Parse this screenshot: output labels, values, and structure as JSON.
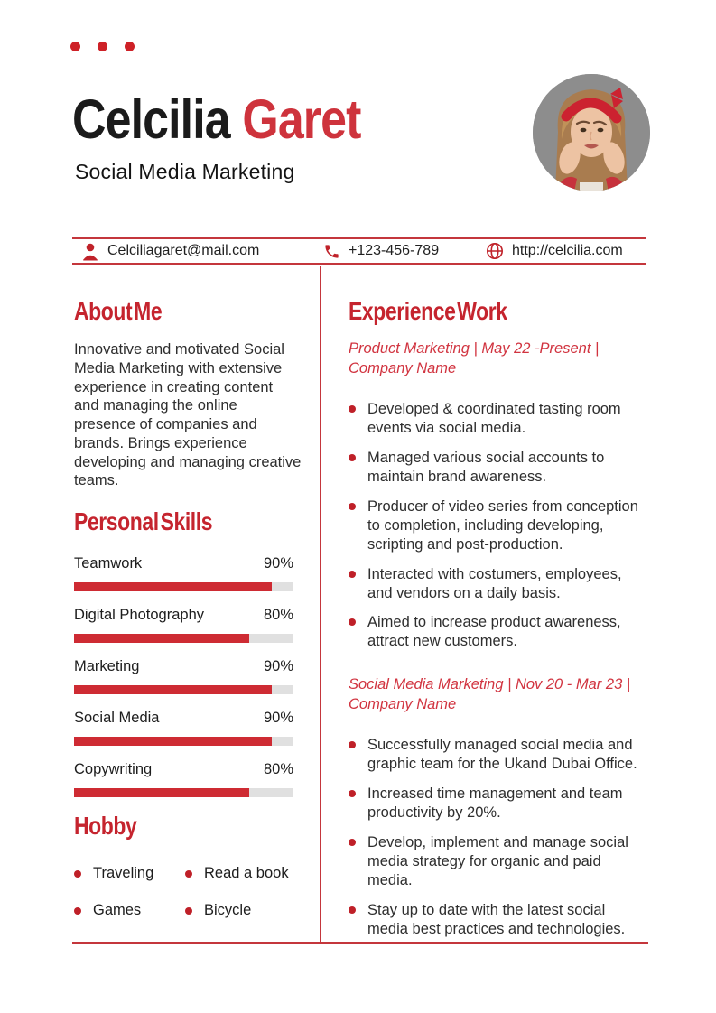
{
  "colors": {
    "accent_red": "#c5242e",
    "name_red": "#ce333c",
    "line_red": "#c4363c",
    "bar_red": "#ce2b33",
    "bullet_red": "#bf2028",
    "bar_track_gray": "#e0e0e0",
    "text_dark": "#2e2e2e",
    "title_black": "#1b1b1b",
    "avatar_bg_gray": "#8d8d8d"
  },
  "header": {
    "first_name": "Celcilia ",
    "last_name": "Garet",
    "subtitle": "Social Media Marketing"
  },
  "contact": {
    "email": "Celciliagaret@mail.com",
    "phone": "+123-456-789",
    "website": "http://celcilia.com"
  },
  "about": {
    "title": "About Me",
    "text": "Innovative and motivated Social Media Marketing with extensive experience in creating content and managing the online presence of companies and brands. Brings experience developing and managing creative teams."
  },
  "skills": {
    "title": "Personal Skills",
    "items": [
      {
        "label": "Teamwork",
        "percent": "90%",
        "value": 90
      },
      {
        "label": "Digital Photography",
        "percent": "80%",
        "value": 80
      },
      {
        "label": "Marketing",
        "percent": "90%",
        "value": 90
      },
      {
        "label": "Social Media",
        "percent": "90%",
        "value": 90
      },
      {
        "label": "Copywriting",
        "percent": "80%",
        "value": 80
      }
    ]
  },
  "hobby": {
    "title": "Hobby",
    "items": [
      {
        "label": "Traveling"
      },
      {
        "label": "Read a book"
      },
      {
        "label": "Games"
      },
      {
        "label": "Bicycle"
      }
    ]
  },
  "experience": {
    "title": "Experience Work",
    "jobs": [
      {
        "heading_line1": "Product Marketing | May 22 -Present |",
        "heading_line2": "Company Name",
        "bullets": [
          {
            "text": "Developed & coordinated tasting room events via social media."
          },
          {
            "text": "Managed various social accounts to maintain brand awareness."
          },
          {
            "text": "Producer of video series from conception to completion, including developing, scripting and post-production."
          },
          {
            "text": "Interacted with costumers, employees, and vendors on a daily basis."
          },
          {
            "text": "Aimed to increase product awareness, attract new customers."
          }
        ]
      },
      {
        "heading_line1": "Social Media Marketing | Nov 20 - Mar 23 |",
        "heading_line2": "Company Name",
        "bullets": [
          {
            "text": "Successfully managed social media and graphic team for the Ukand Dubai Office."
          },
          {
            "text": "Increased time management and team productivity by 20%."
          },
          {
            "text": "Develop, implement and manage social media strategy for organic and paid media."
          },
          {
            "text": "Stay up to date with the latest social media best practices and technologies."
          }
        ]
      }
    ]
  }
}
